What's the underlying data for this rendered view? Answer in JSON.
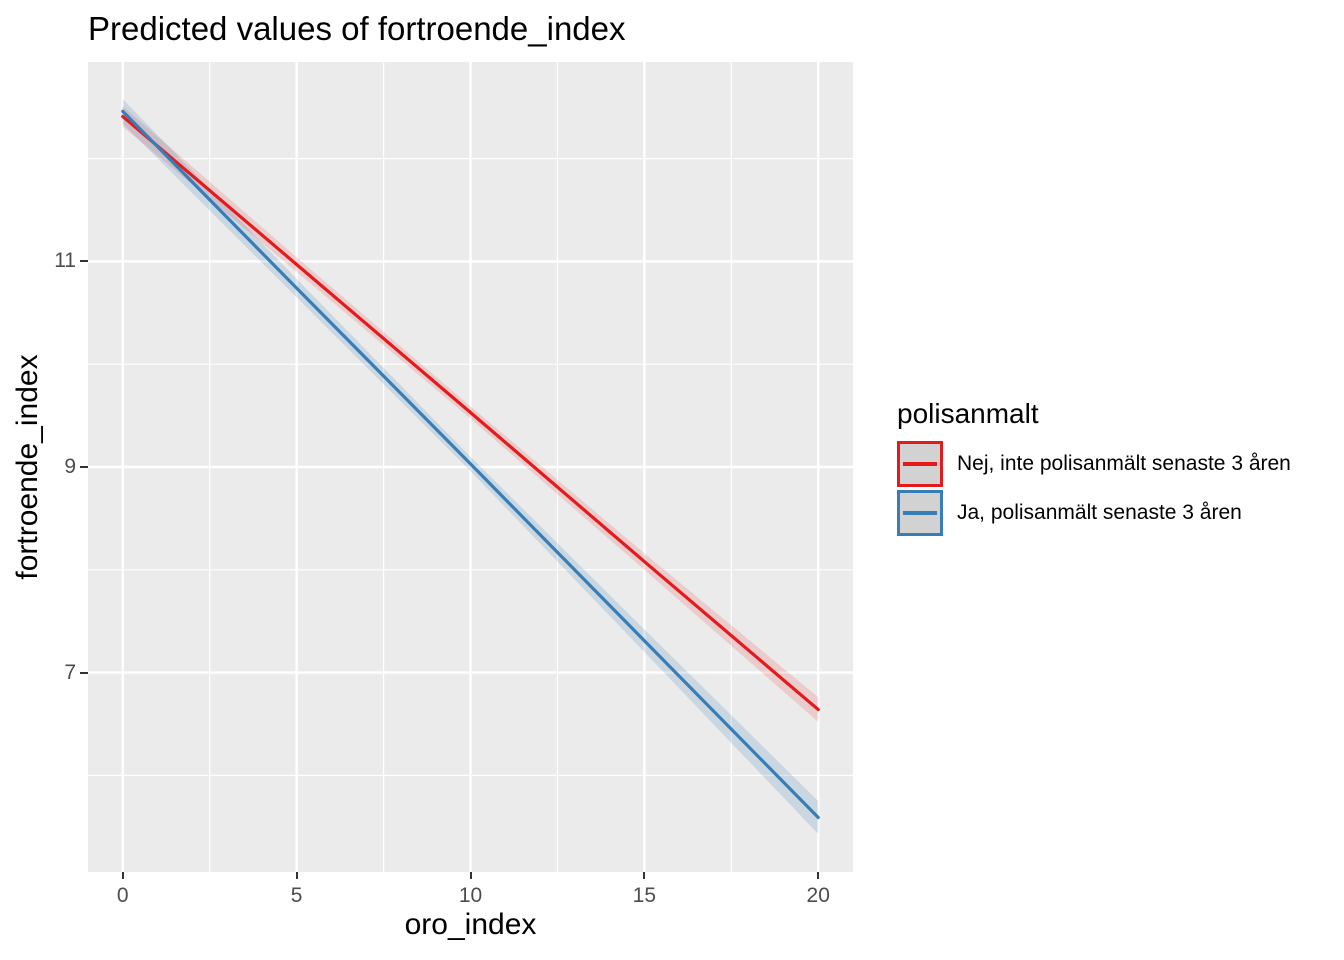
{
  "title": "Predicted values of fortroende_index",
  "axes": {
    "x": {
      "label": "oro_index",
      "tick_labels": [
        "0",
        "5",
        "10",
        "15",
        "20"
      ],
      "tick_values": [
        0,
        5,
        10,
        15,
        20
      ],
      "minor_values": [
        2.5,
        7.5,
        12.5,
        17.5
      ],
      "domain": [
        -1,
        21
      ]
    },
    "y": {
      "label": "fortroende_index",
      "tick_labels": [
        "11",
        "9",
        "7"
      ],
      "tick_values": [
        11,
        9,
        7
      ],
      "minor_values": [
        6,
        8,
        10,
        12
      ],
      "domain": [
        5.06,
        12.94
      ]
    }
  },
  "legend": {
    "title": "polisanmalt",
    "items": [
      {
        "label": "Nej, inte polisanmält senaste 3 åren",
        "line_color": "#E41A1C",
        "key_fill": "#D2D2D2"
      },
      {
        "label": "Ja, polisanmält senaste 3 åren",
        "line_color": "#377EB8",
        "key_fill": "#D2D2D2"
      }
    ]
  },
  "colors": {
    "panel_background": "#EBEBEB",
    "grid": "#FFFFFF",
    "tick_marks": "#333333",
    "tick_labels": "#4D4D4D",
    "red_line": "#E41A1C",
    "blue_line": "#377EB8",
    "red_ribbon": "rgba(228,26,28,0.15)",
    "blue_ribbon": "rgba(55,126,184,0.18)"
  },
  "chart_data": {
    "type": "line",
    "title": "Predicted values of fortroende_index",
    "xlabel": "oro_index",
    "ylabel": "fortroende_index",
    "xlim": [
      -1,
      21
    ],
    "ylim": [
      5.06,
      12.94
    ],
    "grid": true,
    "legend_position": "right",
    "x": [
      0,
      5,
      10,
      15,
      20
    ],
    "series": [
      {
        "name": "Nej, inte polisanmält senaste 3 åren",
        "color": "#E41A1C",
        "ribbon_fill": "rgba(228,26,28,0.15)",
        "values": [
          12.41,
          10.97,
          9.53,
          8.08,
          6.64
        ],
        "ci_lower": [
          12.31,
          10.9,
          9.47,
          8.0,
          6.52
        ],
        "ci_upper": [
          12.51,
          11.04,
          9.59,
          8.16,
          6.76
        ]
      },
      {
        "name": "Ja, polisanmält senaste 3 åren",
        "color": "#377EB8",
        "ribbon_fill": "rgba(55,126,184,0.18)",
        "values": [
          12.46,
          10.74,
          9.03,
          7.31,
          5.59
        ],
        "ci_lower": [
          12.34,
          10.65,
          8.96,
          7.2,
          5.43
        ],
        "ci_upper": [
          12.58,
          10.83,
          9.1,
          7.42,
          5.75
        ]
      }
    ]
  }
}
